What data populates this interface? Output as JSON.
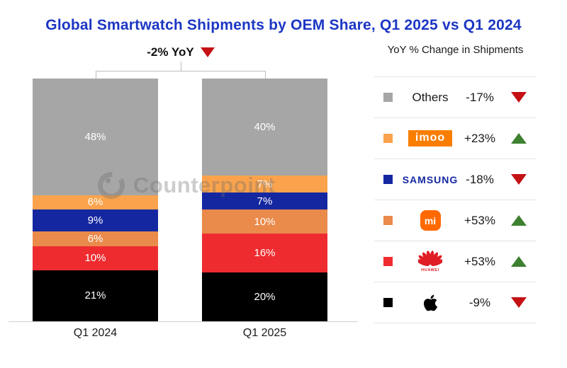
{
  "title": "Global Smartwatch Shipments by OEM Share, Q1 2025 vs Q1 2024",
  "annotation": {
    "label": "-2% YoY",
    "direction": "down"
  },
  "watermark": {
    "text": "Counterpoint"
  },
  "legend": {
    "header": "YoY % Change in Shipments",
    "rows": [
      {
        "name": "others",
        "logo": "text",
        "display": "Others",
        "change": "-17%",
        "direction": "down",
        "swatch": "#A6A6A6"
      },
      {
        "name": "imoo",
        "logo": "imoo-badge",
        "display": "imoo",
        "change": "+23%",
        "direction": "up",
        "swatch": "#FAA34C"
      },
      {
        "name": "samsung",
        "logo": "samsung-wordmark",
        "display": "SAMSUNG",
        "change": "-18%",
        "direction": "down",
        "swatch": "#1527A0"
      },
      {
        "name": "xiaomi",
        "logo": "mi-badge",
        "display": "mi",
        "change": "+53%",
        "direction": "up",
        "swatch": "#EA8A4B"
      },
      {
        "name": "huawei",
        "logo": "huawei-logo",
        "display": "HUAWEI",
        "change": "+53%",
        "direction": "up",
        "swatch": "#EE2C30"
      },
      {
        "name": "apple",
        "logo": "apple-logo",
        "display": "",
        "change": "-9%",
        "direction": "down",
        "swatch": "#000000"
      }
    ]
  },
  "chart_data": {
    "type": "bar",
    "stacked": true,
    "orientation": "vertical",
    "categories": [
      "Q1 2024",
      "Q1 2025"
    ],
    "series": [
      {
        "name": "Others",
        "color": "#A6A6A6",
        "values": [
          48,
          40
        ]
      },
      {
        "name": "imoo",
        "color": "#FAA34C",
        "values": [
          6,
          7
        ]
      },
      {
        "name": "Samsung",
        "color": "#1527A0",
        "values": [
          9,
          7
        ]
      },
      {
        "name": "Xiaomi",
        "color": "#EA8A4B",
        "values": [
          6,
          10
        ]
      },
      {
        "name": "Huawei",
        "color": "#EE2C30",
        "values": [
          10,
          16
        ]
      },
      {
        "name": "Apple",
        "color": "#000000",
        "values": [
          21,
          20
        ]
      }
    ],
    "value_suffix": "%",
    "ylim": [
      0,
      100
    ],
    "grid": false,
    "legend_position": "right",
    "title": "Global Smartwatch Shipments by OEM Share, Q1 2025 vs Q1 2024",
    "total_change_annotation": "-2% YoY"
  }
}
